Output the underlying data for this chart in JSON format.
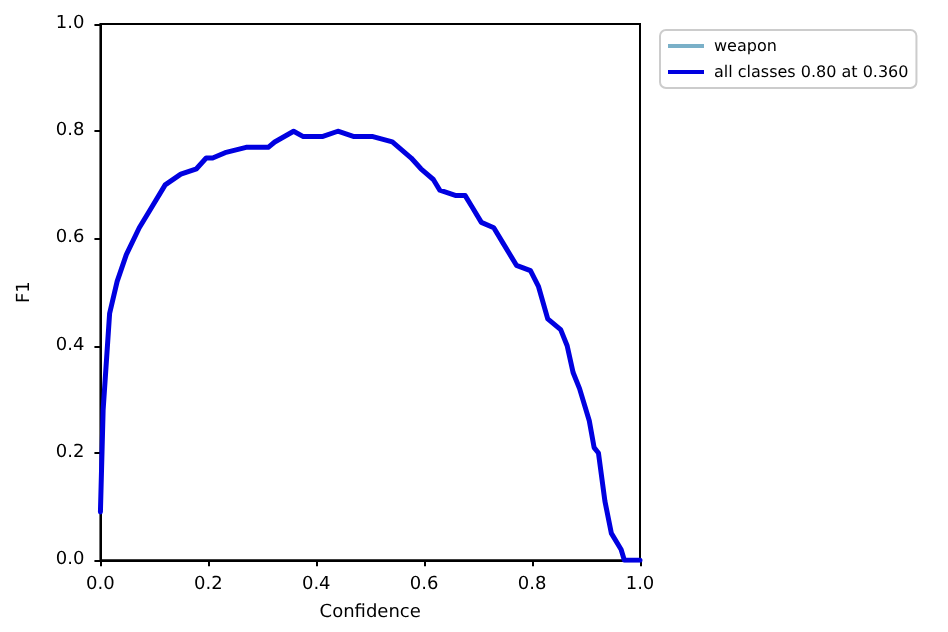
{
  "chart_data": {
    "type": "line",
    "xlabel": "Confidence",
    "ylabel": "F1",
    "xlim": [
      0,
      1
    ],
    "ylim": [
      0,
      1
    ],
    "xticks": [
      {
        "value": 0,
        "label": "0.0"
      },
      0.2,
      0.4,
      0.6,
      0.8,
      {
        "value": 1,
        "label": "1.0"
      }
    ],
    "yticks": [
      {
        "value": 0,
        "label": "0.0"
      },
      0.2,
      0.4,
      0.6,
      0.8,
      {
        "value": 1,
        "label": "1.0"
      }
    ],
    "grid": false,
    "legend": "top right",
    "marker": "none",
    "line_style": "solid",
    "x": [
      0,
      0.005,
      0.017,
      0.031,
      0.048,
      0.072,
      0.09,
      0.12,
      0.149,
      0.178,
      0.196,
      0.208,
      0.231,
      0.27,
      0.311,
      0.323,
      0.358,
      0.376,
      0.393,
      0.411,
      0.44,
      0.47,
      0.505,
      0.541,
      0.576,
      0.594,
      0.617,
      0.629,
      0.659,
      0.676,
      0.688,
      0.706,
      0.729,
      0.747,
      0.771,
      0.797,
      0.812,
      0.829,
      0.853,
      0.865,
      0.876,
      0.888,
      0.906,
      0.915,
      0.923,
      0.935,
      0.947,
      0.965,
      0.971,
      1
    ],
    "series": [
      {
        "name": "weapon",
        "color": "#7ab0c8",
        "values": [
          null,
          null,
          null,
          null,
          null,
          null,
          null,
          null,
          null,
          null,
          null,
          null,
          null,
          null,
          null,
          null,
          null,
          null,
          null,
          null,
          null,
          null,
          null,
          null,
          null,
          null,
          null,
          null,
          null,
          null,
          null,
          null,
          null,
          null,
          null,
          null,
          null,
          null,
          null,
          null,
          null,
          null,
          null,
          null,
          null,
          null,
          null,
          null,
          null,
          null
        ]
      },
      {
        "name": "all classes 0.80 at 0.360",
        "color": "#0000e0",
        "values": [
          0.09,
          0.28,
          0.46,
          0.52,
          0.57,
          0.62,
          0.65,
          0.7,
          0.72,
          0.73,
          0.75,
          0.75,
          0.76,
          0.77,
          0.77,
          0.78,
          0.8,
          0.79,
          0.79,
          0.79,
          0.8,
          0.79,
          0.79,
          0.78,
          0.75,
          0.73,
          0.71,
          0.69,
          0.68,
          0.68,
          0.66,
          0.63,
          0.62,
          0.59,
          0.55,
          0.54,
          0.51,
          0.45,
          0.43,
          0.4,
          0.35,
          0.32,
          0.26,
          0.21,
          0.2,
          0.11,
          0.05,
          0.02,
          0,
          0
        ]
      }
    ]
  }
}
